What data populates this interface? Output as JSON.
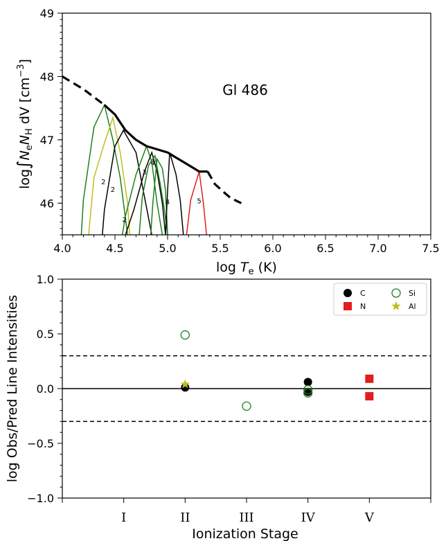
{
  "chart_data": [
    {
      "type": "line",
      "title": "",
      "annotation": "Gl 486",
      "xlabel_main": "log ",
      "xlabel_italic": "T",
      "xlabel_sub": "e",
      "xlabel_unit": " (K)",
      "ylabel_prefix": "log",
      "ylabel_integral": "∫",
      "ylabel_N1": "N",
      "ylabel_sub1": "e",
      "ylabel_N2": "N",
      "ylabel_sub2": "H",
      "ylabel_unit": " dV [cm",
      "ylabel_sup": "−3",
      "ylabel_close": "]",
      "xlim": [
        4.0,
        7.5
      ],
      "ylim": [
        45.5,
        49.0
      ],
      "xticks": [
        "4.0",
        "4.5",
        "5.0",
        "5.5",
        "6.0",
        "6.5",
        "7.0",
        "7.5"
      ],
      "yticks": [
        "46",
        "47",
        "48",
        "49"
      ],
      "colors": {
        "C": "#000000",
        "Si": "#1e7d1e",
        "Al": "#bfbf1e",
        "N": "#e11d1d",
        "main": "#000000"
      },
      "main_curve": {
        "solid": [
          [
            4.4,
            47.55
          ],
          [
            4.5,
            47.4
          ],
          [
            4.6,
            47.15
          ],
          [
            4.7,
            47.0
          ],
          [
            4.8,
            46.9
          ],
          [
            5.0,
            46.8
          ],
          [
            5.1,
            46.7
          ],
          [
            5.2,
            46.6
          ],
          [
            5.3,
            46.5
          ],
          [
            5.38,
            46.5
          ]
        ],
        "dashed_left": [
          [
            4.0,
            48.0
          ],
          [
            4.2,
            47.8
          ],
          [
            4.4,
            47.55
          ]
        ],
        "dashed_right": [
          [
            5.38,
            46.5
          ],
          [
            5.45,
            46.3
          ],
          [
            5.55,
            46.15
          ],
          [
            5.6,
            46.08
          ],
          [
            5.7,
            46.0
          ]
        ]
      },
      "series": [
        {
          "element": "Si",
          "points": [
            [
              4.18,
              45.5
            ],
            [
              4.2,
              46.05
            ],
            [
              4.3,
              47.2
            ],
            [
              4.4,
              47.55
            ],
            [
              4.48,
              47.0
            ],
            [
              4.55,
              46.4
            ],
            [
              4.62,
              45.5
            ]
          ]
        },
        {
          "element": "Al",
          "points": [
            [
              4.25,
              45.5
            ],
            [
              4.3,
              46.4
            ],
            [
              4.4,
              46.95
            ],
            [
              4.48,
              47.35
            ],
            [
              4.55,
              46.8
            ],
            [
              4.62,
              46.0
            ],
            [
              4.64,
              45.5
            ]
          ]
        },
        {
          "element": "C",
          "points": [
            [
              4.38,
              45.5
            ],
            [
              4.4,
              45.9
            ],
            [
              4.5,
              46.9
            ],
            [
              4.58,
              47.15
            ],
            [
              4.7,
              46.8
            ],
            [
              4.78,
              46.1
            ],
            [
              4.85,
              45.5
            ]
          ]
        },
        {
          "element": "Si",
          "points": [
            [
              4.57,
              45.5
            ],
            [
              4.6,
              45.8
            ],
            [
              4.7,
              46.45
            ],
            [
              4.8,
              46.9
            ],
            [
              4.85,
              46.65
            ],
            [
              4.9,
              46.0
            ],
            [
              4.95,
              45.5
            ]
          ]
        },
        {
          "element": "C",
          "points": [
            [
              4.6,
              45.5
            ],
            [
              4.68,
              45.9
            ],
            [
              4.78,
              46.5
            ],
            [
              4.85,
              46.8
            ],
            [
              4.9,
              46.5
            ],
            [
              4.95,
              46.0
            ],
            [
              4.98,
              45.5
            ]
          ]
        },
        {
          "element": "Si",
          "points": [
            [
              4.73,
              45.5
            ],
            [
              4.76,
              46.1
            ],
            [
              4.82,
              46.6
            ],
            [
              4.88,
              46.75
            ],
            [
              4.93,
              46.3
            ],
            [
              4.97,
              45.9
            ],
            [
              5.0,
              45.5
            ]
          ]
        },
        {
          "element": "Si",
          "points": [
            [
              4.84,
              45.5
            ],
            [
              4.86,
              46.0
            ],
            [
              4.9,
              46.7
            ],
            [
              4.95,
              46.55
            ],
            [
              4.98,
              46.2
            ],
            [
              5.0,
              45.5
            ]
          ]
        },
        {
          "element": "C",
          "points": [
            [
              4.98,
              45.5
            ],
            [
              5.0,
              46.2
            ],
            [
              5.02,
              46.8
            ],
            [
              5.08,
              46.45
            ],
            [
              5.12,
              46.05
            ],
            [
              5.15,
              45.5
            ]
          ]
        },
        {
          "element": "N",
          "points": [
            [
              5.18,
              45.5
            ],
            [
              5.22,
              46.05
            ],
            [
              5.3,
              46.5
            ],
            [
              5.34,
              46.0
            ],
            [
              5.37,
              45.5
            ]
          ]
        }
      ],
      "curve_labels": [
        {
          "text": "2",
          "x": 4.39,
          "y": 46.3
        },
        {
          "text": "2",
          "x": 4.48,
          "y": 46.18
        },
        {
          "text": "2",
          "x": 4.59,
          "y": 45.7
        },
        {
          "text": "3",
          "x": 4.78,
          "y": 46.45
        },
        {
          "text": "4",
          "x": 4.86,
          "y": 46.6
        },
        {
          "text": "4",
          "x": 5.0,
          "y": 45.98
        },
        {
          "text": "5",
          "x": 5.3,
          "y": 46.0
        }
      ]
    },
    {
      "type": "scatter",
      "title": "",
      "xlabel": "Ionization Stage",
      "ylabel": "log Obs/Pred Line Intensities",
      "xlim": [
        0,
        6
      ],
      "ylim": [
        -1.0,
        1.0
      ],
      "categories": [
        "I",
        "II",
        "III",
        "IV",
        "V"
      ],
      "yticks": [
        "−1.0",
        "−0.5",
        "0.0",
        "0.5",
        "1.0"
      ],
      "reference_lines": {
        "solid": 0.0,
        "dashed": [
          0.3,
          -0.3
        ]
      },
      "legend": {
        "placement": "top-right",
        "entries": [
          "C",
          "Si",
          "N",
          "Al"
        ]
      },
      "series": [
        {
          "name": "C",
          "marker": "filled-circle",
          "color": "#000000",
          "points": [
            [
              2,
              0.01
            ],
            [
              4,
              0.06
            ],
            [
              4,
              -0.03
            ]
          ]
        },
        {
          "name": "Si",
          "marker": "open-circle",
          "color": "#1e7d1e",
          "points": [
            [
              2,
              0.49
            ],
            [
              3,
              -0.16
            ],
            [
              4,
              -0.01
            ],
            [
              4,
              -0.04
            ]
          ]
        },
        {
          "name": "N",
          "marker": "square",
          "color": "#e11d1d",
          "points": [
            [
              5,
              0.09
            ],
            [
              5,
              -0.07
            ]
          ]
        },
        {
          "name": "Al",
          "marker": "star",
          "color": "#bfbf1e",
          "points": [
            [
              2,
              0.04
            ]
          ]
        }
      ]
    }
  ]
}
